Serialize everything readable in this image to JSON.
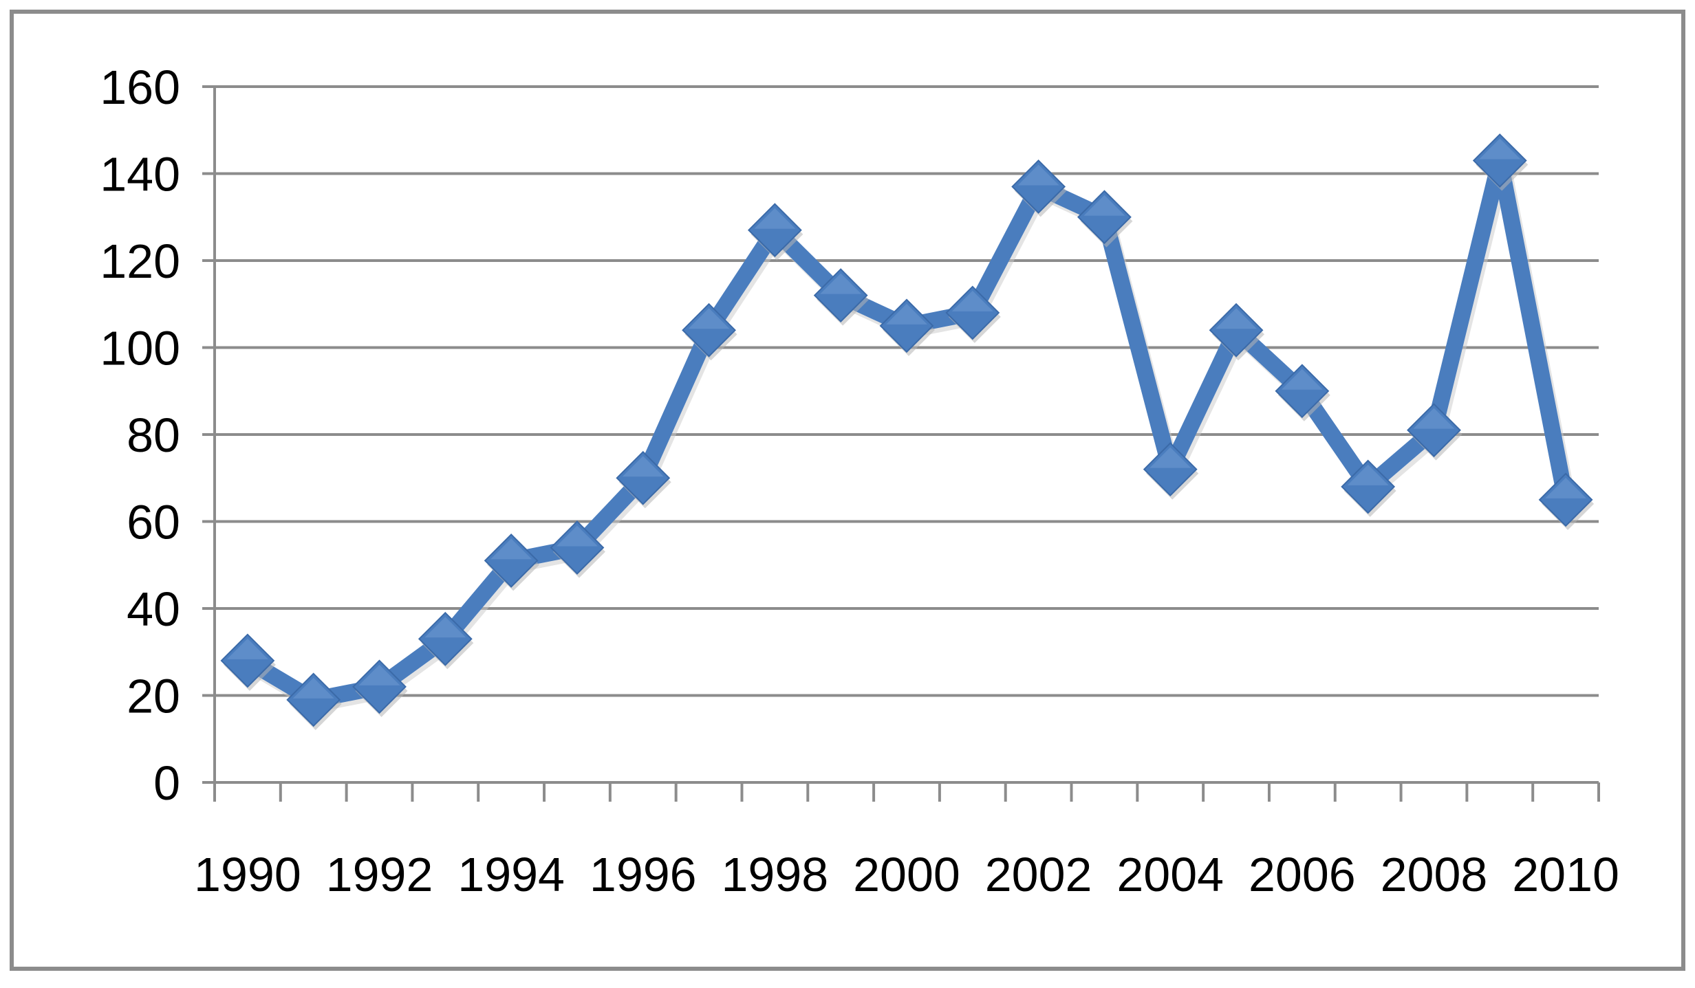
{
  "chart_data": {
    "type": "line",
    "title": "",
    "xlabel": "",
    "ylabel": "",
    "x": [
      1990,
      1991,
      1992,
      1993,
      1994,
      1995,
      1996,
      1997,
      1998,
      1999,
      2000,
      2001,
      2002,
      2003,
      2004,
      2005,
      2006,
      2007,
      2008,
      2009,
      2010
    ],
    "x_tick_labels": [
      "1990",
      "1992",
      "1994",
      "1996",
      "1998",
      "2000",
      "2002",
      "2004",
      "2006",
      "2008",
      "2010"
    ],
    "y_tick_labels": [
      "0",
      "20",
      "40",
      "60",
      "80",
      "100",
      "120",
      "140",
      "160"
    ],
    "ylim": [
      0,
      160
    ],
    "grid": true,
    "legend": "none",
    "series": [
      {
        "values": [
          28,
          19,
          22,
          33,
          51,
          54,
          70,
          104,
          127,
          112,
          105,
          108,
          137,
          130,
          72,
          104,
          90,
          68,
          81,
          143,
          65
        ],
        "color": "#4a7dbe",
        "marker": "diamond"
      }
    ]
  }
}
